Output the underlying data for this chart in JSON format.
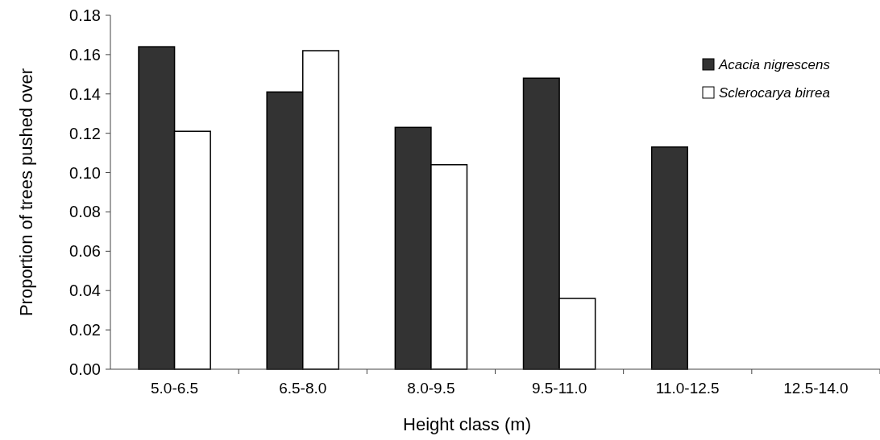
{
  "chart_data": {
    "type": "bar",
    "xlabel": "Height class (m)",
    "ylabel": "Proportion of trees pushed over",
    "categories": [
      "5.0-6.5",
      "6.5-8.0",
      "8.0-9.5",
      "9.5-11.0",
      "11.0-12.5",
      "12.5-14.0"
    ],
    "series": [
      {
        "name": "Acacia nigrescens",
        "color": "#333333",
        "values": [
          0.164,
          0.141,
          0.123,
          0.148,
          0.113,
          0
        ]
      },
      {
        "name": "Sclerocarya birrea",
        "color": "#ffffff",
        "values": [
          0.121,
          0.162,
          0.104,
          0.036,
          0,
          0
        ]
      }
    ],
    "ylim": [
      0,
      0.18
    ],
    "yticks": [
      {
        "value": 0,
        "label": "0.00"
      },
      0.02,
      0.04,
      0.06,
      0.08,
      {
        "value": 0.1,
        "label": "0.10"
      },
      0.12,
      0.14,
      0.16,
      0.18
    ],
    "legend": "top right",
    "grid": false
  }
}
